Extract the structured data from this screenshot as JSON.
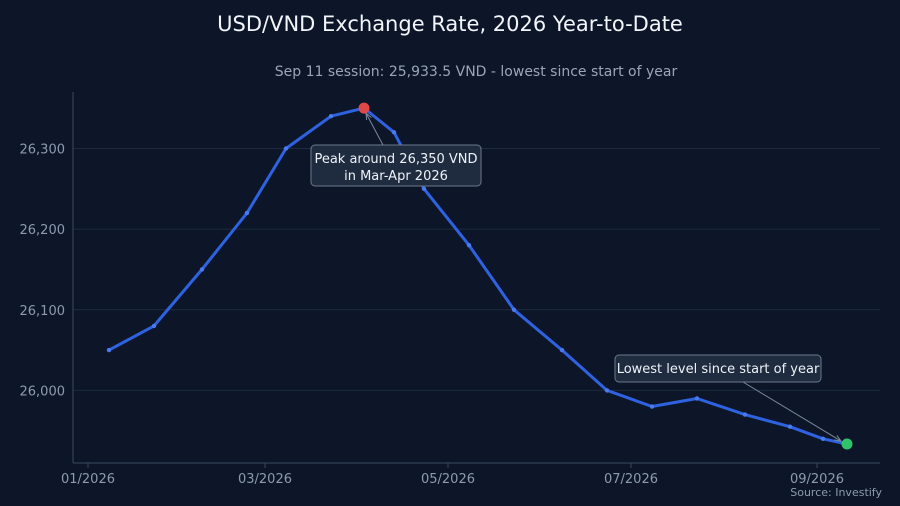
{
  "chart_data": {
    "type": "line",
    "title": "USD/VND Exchange Rate, 2026 Year-to-Date",
    "subtitle": "Sep 11 session: 25,933.5 VND - lowest since start of year",
    "source": "Source: Investify",
    "xlabel": "",
    "ylabel": "",
    "x_ticks": [
      {
        "label": "01/2026",
        "date": "2026-01-01"
      },
      {
        "label": "03/2026",
        "date": "2026-03-01"
      },
      {
        "label": "05/2026",
        "date": "2026-05-01"
      },
      {
        "label": "07/2026",
        "date": "2026-07-01"
      },
      {
        "label": "09/2026",
        "date": "2026-09-01"
      }
    ],
    "y_ticks": [
      {
        "label": "26,000",
        "value": 26000
      },
      {
        "label": "26,100",
        "value": 26100
      },
      {
        "label": "26,200",
        "value": 26200
      },
      {
        "label": "26,300",
        "value": 26300
      }
    ],
    "xlim": [
      "2025-12-27",
      "2026-09-22"
    ],
    "ylim": [
      25910,
      26370
    ],
    "grid": true,
    "series": [
      {
        "color": "#2f62e0",
        "points": [
          {
            "date": "2026-01-08",
            "value": 26050
          },
          {
            "date": "2026-01-23",
            "value": 26080
          },
          {
            "date": "2026-02-08",
            "value": 26150
          },
          {
            "date": "2026-02-23",
            "value": 26220
          },
          {
            "date": "2026-03-08",
            "value": 26300
          },
          {
            "date": "2026-03-23",
            "value": 26340
          },
          {
            "date": "2026-04-03",
            "value": 26350
          },
          {
            "date": "2026-04-13",
            "value": 26320
          },
          {
            "date": "2026-04-23",
            "value": 26250
          },
          {
            "date": "2026-05-08",
            "value": 26180
          },
          {
            "date": "2026-05-23",
            "value": 26100
          },
          {
            "date": "2026-06-08",
            "value": 26050
          },
          {
            "date": "2026-06-23",
            "value": 26000
          },
          {
            "date": "2026-07-08",
            "value": 25980
          },
          {
            "date": "2026-07-23",
            "value": 25990
          },
          {
            "date": "2026-08-08",
            "value": 25970
          },
          {
            "date": "2026-08-23",
            "value": 25955
          },
          {
            "date": "2026-09-03",
            "value": 25940
          },
          {
            "date": "2026-09-11",
            "value": 25933.5
          }
        ]
      }
    ],
    "highlights": [
      {
        "date": "2026-04-03",
        "value": 26350,
        "color": "#e04848"
      },
      {
        "date": "2026-09-11",
        "value": 25933.5,
        "color": "#2fc46a"
      }
    ],
    "annotations": [
      {
        "lines": [
          "Peak around 26,350 VND",
          "in Mar-Apr 2026"
        ],
        "target_date": "2026-04-03",
        "target_value": 26350
      },
      {
        "lines": [
          "Lowest level since start of year"
        ],
        "target_date": "2026-09-11",
        "target_value": 25933.5
      }
    ]
  }
}
